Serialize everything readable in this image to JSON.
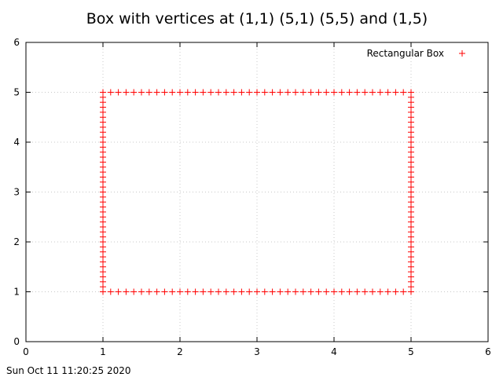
{
  "chart_data": {
    "type": "scatter",
    "title": "Box with vertices at (1,1) (5,1) (5,5) and (1,5)",
    "xlabel": "",
    "ylabel": "",
    "xlim": [
      0,
      6
    ],
    "ylim": [
      0,
      6
    ],
    "x_ticks": [
      "0",
      "1",
      "2",
      "3",
      "4",
      "5",
      "6"
    ],
    "y_ticks": [
      "0",
      "1",
      "2",
      "3",
      "4",
      "5",
      "6"
    ],
    "grid": true,
    "legend_position": "top-right",
    "series": [
      {
        "name": "Rectangular Box",
        "color": "#ff0000",
        "marker": "plus",
        "step": 0.1,
        "vertices": [
          [
            1,
            1
          ],
          [
            5,
            1
          ],
          [
            5,
            5
          ],
          [
            1,
            5
          ]
        ]
      }
    ]
  },
  "timestamp": "Sun Oct 11 11:20:25 2020"
}
